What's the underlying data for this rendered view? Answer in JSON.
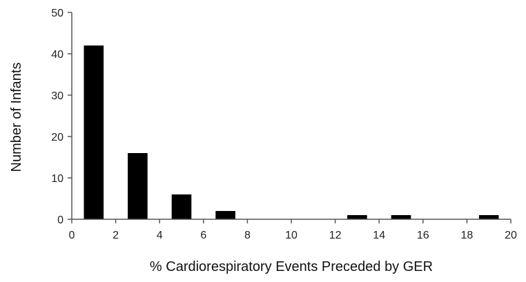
{
  "chart_data": {
    "type": "bar",
    "title": "",
    "xlabel": "% Cardiorespiratory Events Preceded by GER",
    "ylabel": "Number of Infants",
    "xlim": [
      0,
      20
    ],
    "ylim": [
      0,
      50
    ],
    "x_ticks": [
      0,
      2,
      4,
      6,
      8,
      10,
      12,
      14,
      16,
      18,
      20
    ],
    "y_ticks": [
      0,
      10,
      20,
      30,
      40,
      50
    ],
    "bar_width": 0.9,
    "bar_color": "#000000",
    "grid": false,
    "legend": "none",
    "bars": [
      {
        "x": 1,
        "value": 42
      },
      {
        "x": 3,
        "value": 16
      },
      {
        "x": 5,
        "value": 6
      },
      {
        "x": 7,
        "value": 2
      },
      {
        "x": 13,
        "value": 1
      },
      {
        "x": 15,
        "value": 1
      },
      {
        "x": 19,
        "value": 1
      }
    ]
  }
}
